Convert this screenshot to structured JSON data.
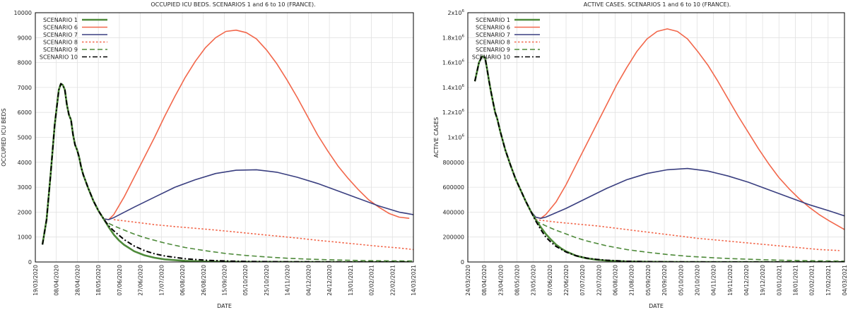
{
  "chart_data": [
    {
      "type": "line",
      "title": "OCCUPIED ICU BEDS. SCENARIOS 1 and 6 to 10 (FRANCE).",
      "xlabel": "DATE",
      "ylabel": "OCCUPIED ICU BEDS",
      "ylim": [
        0,
        10000
      ],
      "yticks": [
        "0",
        "1000",
        "2000",
        "3000",
        "4000",
        "5000",
        "6000",
        "7000",
        "8000",
        "9000",
        "10000"
      ],
      "xticks": [
        "19/03/2020",
        "08/04/2020",
        "28/04/2020",
        "18/05/2020",
        "07/06/2020",
        "27/06/2020",
        "17/07/2020",
        "06/08/2020",
        "26/08/2020",
        "15/09/2020",
        "05/10/2020",
        "25/10/2020",
        "14/11/2020",
        "04/12/2020",
        "24/12/2020",
        "13/01/2021",
        "02/02/2021",
        "22/02/2021",
        "14/03/2021"
      ],
      "xrange_days": [
        -7,
        364
      ],
      "grid": true,
      "legend_position": "top-left",
      "series": [
        {
          "name": "SCENARIO 1",
          "color": "#4e8a3a",
          "dash": "solid",
          "x": [
            0,
            4,
            8,
            12,
            16,
            18,
            20,
            22,
            24,
            26,
            28,
            30,
            32,
            34,
            36,
            38,
            40,
            45,
            50,
            55,
            60,
            65,
            70,
            75,
            80,
            90,
            100,
            110,
            120,
            140,
            160,
            180,
            200,
            240,
            280,
            320,
            360
          ],
          "y": [
            700,
            1700,
            3500,
            5500,
            6900,
            7150,
            7100,
            6900,
            6300,
            5900,
            5700,
            5100,
            4700,
            4500,
            4200,
            3800,
            3500,
            2950,
            2450,
            2050,
            1730,
            1400,
            1100,
            870,
            690,
            430,
            270,
            170,
            105,
            45,
            20,
            10,
            5,
            2,
            1,
            0,
            0
          ]
        },
        {
          "name": "SCENARIO 6",
          "color": "#f2674b",
          "dash": "solid",
          "x": [
            0,
            4,
            8,
            12,
            16,
            18,
            20,
            22,
            24,
            26,
            28,
            30,
            32,
            34,
            36,
            38,
            40,
            45,
            50,
            55,
            60,
            65,
            70,
            80,
            90,
            100,
            110,
            120,
            130,
            140,
            150,
            160,
            170,
            180,
            190,
            200,
            210,
            220,
            230,
            240,
            250,
            260,
            270,
            280,
            290,
            300,
            310,
            320,
            330,
            340,
            350,
            360
          ],
          "y": [
            700,
            1700,
            3500,
            5500,
            6900,
            7150,
            7100,
            6900,
            6300,
            5900,
            5700,
            5100,
            4700,
            4500,
            4200,
            3800,
            3500,
            2950,
            2450,
            2050,
            1730,
            1700,
            1900,
            2600,
            3400,
            4200,
            5000,
            5850,
            6650,
            7400,
            8050,
            8600,
            9000,
            9250,
            9300,
            9200,
            8950,
            8500,
            7950,
            7300,
            6600,
            5850,
            5100,
            4450,
            3850,
            3350,
            2900,
            2500,
            2200,
            1950,
            1800,
            1750
          ]
        },
        {
          "name": "SCENARIO 7",
          "color": "#3a3f80",
          "dash": "solid",
          "x": [
            0,
            4,
            8,
            12,
            16,
            18,
            20,
            22,
            24,
            26,
            28,
            30,
            32,
            34,
            36,
            38,
            40,
            45,
            50,
            55,
            60,
            65,
            70,
            90,
            110,
            130,
            150,
            170,
            190,
            210,
            230,
            250,
            270,
            290,
            310,
            330,
            350,
            364
          ],
          "y": [
            700,
            1700,
            3500,
            5500,
            6900,
            7150,
            7100,
            6900,
            6300,
            5900,
            5700,
            5100,
            4700,
            4500,
            4200,
            3800,
            3500,
            2950,
            2450,
            2050,
            1730,
            1700,
            1780,
            2200,
            2600,
            3000,
            3300,
            3550,
            3680,
            3700,
            3600,
            3400,
            3150,
            2850,
            2550,
            2250,
            2000,
            1900
          ]
        },
        {
          "name": "SCENARIO 8",
          "color": "#f2674b",
          "dash": "dot",
          "x": [
            70,
            90,
            110,
            130,
            150,
            170,
            190,
            210,
            230,
            250,
            270,
            290,
            310,
            330,
            350,
            364
          ],
          "y": [
            1700,
            1600,
            1500,
            1420,
            1350,
            1280,
            1200,
            1120,
            1040,
            960,
            870,
            790,
            710,
            630,
            560,
            500
          ]
        },
        {
          "name": "SCENARIO 9",
          "color": "#4e8a3a",
          "dash": "dash",
          "x": [
            65,
            70,
            80,
            90,
            100,
            120,
            140,
            160,
            180,
            200,
            220,
            240,
            260,
            280,
            300,
            320,
            340,
            364
          ],
          "y": [
            1550,
            1450,
            1280,
            1120,
            980,
            760,
            580,
            450,
            340,
            260,
            200,
            150,
            115,
            90,
            70,
            55,
            45,
            40
          ]
        },
        {
          "name": "SCENARIO 10",
          "color": "#000000",
          "dash": "dashdot",
          "x": [
            0,
            4,
            8,
            12,
            16,
            18,
            20,
            22,
            24,
            26,
            28,
            30,
            32,
            34,
            36,
            38,
            40,
            45,
            50,
            55,
            60,
            65,
            70,
            80,
            90,
            100,
            110,
            120,
            140,
            160,
            180,
            200,
            240,
            280,
            320,
            360
          ],
          "y": [
            700,
            1700,
            3500,
            5500,
            6900,
            7150,
            7100,
            6900,
            6300,
            5900,
            5700,
            5100,
            4700,
            4500,
            4200,
            3800,
            3500,
            2950,
            2450,
            2050,
            1730,
            1450,
            1250,
            900,
            640,
            460,
            330,
            240,
            130,
            70,
            40,
            22,
            8,
            3,
            1,
            0
          ]
        }
      ]
    },
    {
      "type": "line",
      "title": "ACTIVE CASES. SCENARIOS 1 and 6 to 10 (FRANCE).",
      "xlabel": "DATE",
      "ylabel": "ACTIVE CASES",
      "ylim": [
        0,
        2000000
      ],
      "yticks": [
        "0",
        "200000",
        "400000",
        "600000",
        "800000",
        "1x10",
        "1.2x10",
        "1.4x10",
        "1.6x10",
        "1.8x10",
        "2x10"
      ],
      "ytick_exp": "6",
      "xticks": [
        "24/03/2020",
        "08/04/2020",
        "23/04/2020",
        "08/05/2020",
        "23/05/2020",
        "07/06/2020",
        "22/06/2020",
        "07/07/2020",
        "22/07/2020",
        "06/08/2020",
        "21/08/2020",
        "05/09/2020",
        "20/09/2020",
        "05/10/2020",
        "20/10/2020",
        "04/11/2020",
        "19/11/2020",
        "04/12/2020",
        "19/12/2020",
        "03/01/2021",
        "18/01/2021",
        "02/02/2021",
        "17/02/2021",
        "04/03/2021"
      ],
      "xrange_days": [
        -17,
        355
      ],
      "grid": true,
      "legend_position": "top-left",
      "series": [
        {
          "name": "SCENARIO 1",
          "color": "#4e8a3a",
          "dash": "solid",
          "x": [
            -10,
            -6,
            -3,
            0,
            2,
            4,
            6,
            8,
            10,
            12,
            15,
            20,
            25,
            30,
            35,
            40,
            45,
            50,
            55,
            60,
            65,
            70,
            75,
            80,
            90,
            100,
            110,
            120,
            140,
            160,
            180,
            200,
            240,
            280,
            320,
            355
          ],
          "y": [
            1450000,
            1600000,
            1650000,
            1640000,
            1550000,
            1450000,
            1360000,
            1280000,
            1200000,
            1150000,
            1050000,
            900000,
            780000,
            670000,
            580000,
            490000,
            410000,
            340000,
            280000,
            225000,
            180000,
            140000,
            110000,
            85000,
            50000,
            30000,
            18000,
            11000,
            4000,
            1500,
            600,
            200,
            50,
            10,
            2,
            0
          ]
        },
        {
          "name": "SCENARIO 6",
          "color": "#f2674b",
          "dash": "solid",
          "x": [
            -10,
            -6,
            -3,
            0,
            2,
            4,
            6,
            8,
            10,
            12,
            15,
            20,
            25,
            30,
            35,
            40,
            45,
            50,
            55,
            60,
            70,
            80,
            90,
            100,
            110,
            120,
            130,
            140,
            150,
            160,
            170,
            180,
            190,
            200,
            210,
            220,
            230,
            240,
            250,
            260,
            270,
            280,
            290,
            300,
            310,
            320,
            330,
            340,
            355
          ],
          "y": [
            1450000,
            1600000,
            1650000,
            1640000,
            1550000,
            1450000,
            1360000,
            1280000,
            1200000,
            1150000,
            1050000,
            900000,
            780000,
            670000,
            580000,
            490000,
            410000,
            360000,
            350000,
            380000,
            480000,
            620000,
            780000,
            940000,
            1100000,
            1260000,
            1420000,
            1560000,
            1690000,
            1790000,
            1850000,
            1870000,
            1850000,
            1790000,
            1690000,
            1580000,
            1450000,
            1310000,
            1170000,
            1040000,
            910000,
            790000,
            680000,
            590000,
            510000,
            440000,
            380000,
            330000,
            260000
          ]
        },
        {
          "name": "SCENARIO 7",
          "color": "#3a3f80",
          "dash": "solid",
          "x": [
            -10,
            -6,
            -3,
            0,
            2,
            4,
            6,
            8,
            10,
            12,
            15,
            20,
            25,
            30,
            35,
            40,
            45,
            50,
            55,
            60,
            80,
            100,
            120,
            140,
            160,
            180,
            200,
            220,
            240,
            260,
            280,
            300,
            320,
            340,
            355
          ],
          "y": [
            1450000,
            1600000,
            1650000,
            1640000,
            1550000,
            1450000,
            1360000,
            1280000,
            1200000,
            1150000,
            1050000,
            900000,
            780000,
            670000,
            580000,
            490000,
            410000,
            360000,
            350000,
            360000,
            430000,
            510000,
            590000,
            660000,
            710000,
            740000,
            750000,
            730000,
            690000,
            640000,
            580000,
            520000,
            460000,
            410000,
            370000
          ]
        },
        {
          "name": "SCENARIO 8",
          "color": "#f2674b",
          "dash": "dot",
          "x": [
            50,
            70,
            90,
            110,
            130,
            150,
            170,
            190,
            210,
            230,
            250,
            270,
            290,
            310,
            330,
            350
          ],
          "y": [
            340000,
            320000,
            305000,
            290000,
            270000,
            250000,
            230000,
            210000,
            190000,
            175000,
            160000,
            145000,
            130000,
            115000,
            100000,
            92000
          ]
        },
        {
          "name": "SCENARIO 9",
          "color": "#4e8a3a",
          "dash": "dash",
          "x": [
            50,
            60,
            70,
            80,
            90,
            100,
            120,
            140,
            160,
            180,
            200,
            220,
            240,
            260,
            280,
            300,
            320,
            340,
            355
          ],
          "y": [
            330000,
            290000,
            255000,
            225000,
            195000,
            170000,
            130000,
            100000,
            78000,
            60000,
            46000,
            36000,
            28000,
            22000,
            17000,
            13000,
            10000,
            8000,
            7000
          ]
        },
        {
          "name": "SCENARIO 10",
          "color": "#000000",
          "dash": "dashdot",
          "x": [
            -10,
            -6,
            -3,
            0,
            2,
            4,
            6,
            8,
            10,
            12,
            15,
            20,
            25,
            30,
            35,
            40,
            45,
            50,
            55,
            60,
            65,
            70,
            80,
            90,
            100,
            110,
            120,
            140,
            160,
            180,
            200,
            240,
            280,
            320,
            355
          ],
          "y": [
            1450000,
            1600000,
            1650000,
            1640000,
            1550000,
            1450000,
            1360000,
            1280000,
            1200000,
            1150000,
            1050000,
            900000,
            780000,
            670000,
            580000,
            490000,
            410000,
            330000,
            260000,
            200000,
            160000,
            125000,
            80000,
            50000,
            32000,
            21000,
            14000,
            6000,
            2600,
            1100,
            500,
            100,
            20,
            4,
            1
          ]
        }
      ]
    }
  ]
}
